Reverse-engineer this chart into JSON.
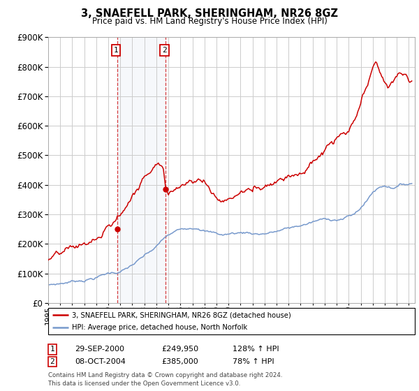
{
  "title": "3, SNAEFELL PARK, SHERINGHAM, NR26 8GZ",
  "subtitle": "Price paid vs. HM Land Registry's House Price Index (HPI)",
  "background_color": "#ffffff",
  "grid_color": "#cccccc",
  "hpi_line_color": "#7799cc",
  "price_line_color": "#cc0000",
  "sale1_date_num": 2000.75,
  "sale1_price": 249950,
  "sale1_label": "1",
  "sale2_date_num": 2004.78,
  "sale2_price": 385000,
  "sale2_label": "2",
  "legend_items": [
    {
      "label": "3, SNAEFELL PARK, SHERINGHAM, NR26 8GZ (detached house)",
      "color": "#cc0000"
    },
    {
      "label": "HPI: Average price, detached house, North Norfolk",
      "color": "#7799cc"
    }
  ],
  "sale_table": [
    {
      "num": "1",
      "date": "29-SEP-2000",
      "price": "£249,950",
      "hpi": "128% ↑ HPI"
    },
    {
      "num": "2",
      "date": "08-OCT-2004",
      "price": "£385,000",
      "hpi": "78% ↑ HPI"
    }
  ],
  "footnote": "Contains HM Land Registry data © Crown copyright and database right 2024.\nThis data is licensed under the Open Government Licence v3.0.",
  "xmin": 1995.0,
  "xmax": 2025.5,
  "ymin": 0,
  "ymax": 900000
}
